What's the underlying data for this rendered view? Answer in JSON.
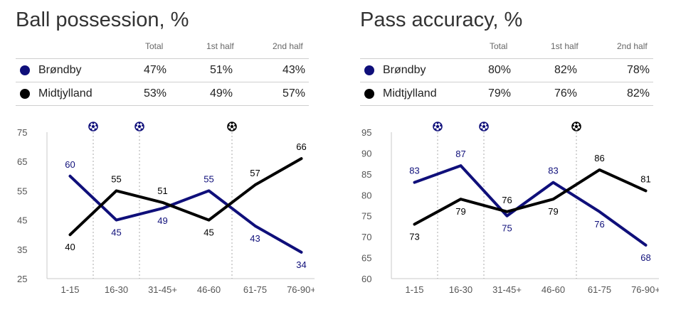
{
  "colors": {
    "brondby": "#0f0f7a",
    "midtjylland": "#000000"
  },
  "panels": [
    {
      "title": "Ball possession, %",
      "headers": [
        "Total",
        "1st half",
        "2nd half"
      ],
      "rows": [
        {
          "team": "Brøndby",
          "values": [
            "47%",
            "51%",
            "43%"
          ]
        },
        {
          "team": "Midtjylland",
          "values": [
            "53%",
            "49%",
            "57%"
          ]
        }
      ]
    },
    {
      "title": "Pass accuracy, %",
      "headers": [
        "Total",
        "1st half",
        "2nd half"
      ],
      "rows": [
        {
          "team": "Brøndby",
          "values": [
            "80%",
            "82%",
            "78%"
          ]
        },
        {
          "team": "Midtjylland",
          "values": [
            "79%",
            "76%",
            "82%"
          ]
        }
      ]
    }
  ],
  "chart_data": [
    {
      "type": "line",
      "categories": [
        "1-15",
        "16-30",
        "31-45+",
        "46-60",
        "61-75",
        "76-90+"
      ],
      "yticks": [
        "75",
        "65",
        "55",
        "45",
        "35",
        "25"
      ],
      "ylim": [
        25,
        75
      ],
      "goals": [
        {
          "x": 0.5,
          "team": "brondby"
        },
        {
          "x": 1.5,
          "team": "brondby"
        },
        {
          "x": 3.5,
          "team": "midtjylland"
        }
      ],
      "series": [
        {
          "team": "brondby",
          "values": [
            60,
            45,
            49,
            55,
            43,
            34
          ],
          "labels": [
            "60",
            "45",
            "49",
            "55",
            "43",
            "34"
          ],
          "label_pos": [
            "above",
            "below",
            "below",
            "above",
            "below",
            "below"
          ]
        },
        {
          "team": "midtjylland",
          "values": [
            40,
            55,
            51,
            45,
            57,
            66
          ],
          "labels": [
            "40",
            "55",
            "51",
            "45",
            "57",
            "66"
          ],
          "label_pos": [
            "below",
            "above",
            "above",
            "below",
            "above",
            "above"
          ]
        }
      ]
    },
    {
      "type": "line",
      "categories": [
        "1-15",
        "16-30",
        "31-45+",
        "46-60",
        "61-75",
        "76-90+"
      ],
      "yticks": [
        "95",
        "90",
        "85",
        "80",
        "75",
        "70",
        "65",
        "60"
      ],
      "ylim": [
        60,
        95
      ],
      "goals": [
        {
          "x": 0.5,
          "team": "brondby"
        },
        {
          "x": 1.5,
          "team": "brondby"
        },
        {
          "x": 3.5,
          "team": "midtjylland"
        }
      ],
      "series": [
        {
          "team": "brondby",
          "values": [
            83,
            87,
            75,
            83,
            76,
            68
          ],
          "labels": [
            "83",
            "87",
            "75",
            "83",
            "76",
            "68"
          ],
          "label_pos": [
            "above",
            "above",
            "below",
            "above",
            "below",
            "below"
          ]
        },
        {
          "team": "midtjylland",
          "values": [
            73,
            79,
            76,
            79,
            86,
            81
          ],
          "labels": [
            "73",
            "79",
            "76",
            "79",
            "86",
            "81"
          ],
          "label_pos": [
            "below",
            "below",
            "above",
            "below",
            "above",
            "above"
          ]
        }
      ]
    }
  ]
}
